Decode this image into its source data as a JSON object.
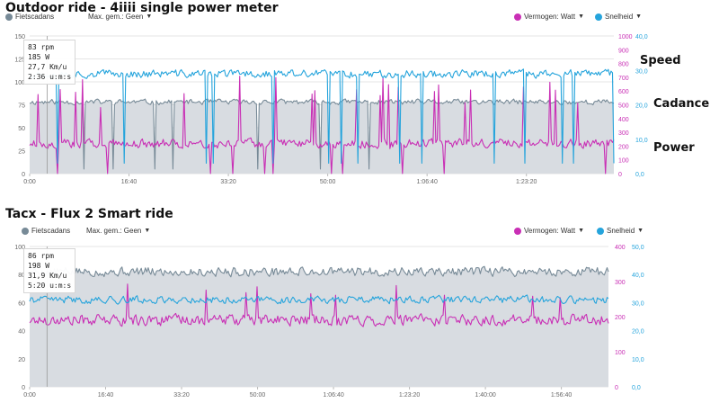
{
  "legend": {
    "cadence": "Fietscadans",
    "max_avg": "Max. gem.: Geen",
    "power": "Vermogen: Watt",
    "speed": "Snelheid"
  },
  "colors": {
    "cadence": "#778a97",
    "cadence_fill": "#d8dce1",
    "power": "#c92fb5",
    "speed": "#25a4dc",
    "grid": "#e5e5e5"
  },
  "icons": [
    "caret-down-icon"
  ],
  "chart_data": [
    {
      "type": "line",
      "title": "Outdoor ride - 4iiii single power meter",
      "annotations": [
        "Speed",
        "Cadance",
        "Power"
      ],
      "hover": [
        "83 rpm",
        "185 W",
        "27,7 Km/u",
        "2:36 u:m:s"
      ],
      "x_ticks": [
        "0:00",
        "16:40",
        "33:20",
        "50:00",
        "1:06:40",
        "1:23:20"
      ],
      "x_tick_seconds": [
        0,
        1000,
        2000,
        3000,
        4000,
        5000
      ],
      "x_end_seconds": 5880,
      "cadence_axis": {
        "ticks": [
          "0",
          "25",
          "50",
          "75",
          "100",
          "125",
          "150"
        ],
        "range": [
          0,
          150
        ]
      },
      "power_axis": {
        "ticks": [
          "0",
          "100",
          "200",
          "300",
          "400",
          "500",
          "600",
          "700",
          "800",
          "900",
          "1000"
        ],
        "range": [
          0,
          1000
        ]
      },
      "speed_axis": {
        "ticks": [
          "0,0",
          "10,0",
          "20,0",
          "30,0",
          "40,0"
        ],
        "range": [
          0,
          40
        ]
      },
      "series": [
        {
          "name": "Fietscadans",
          "axis": "cadence",
          "base": 78,
          "noise": 4,
          "dips": 0.03,
          "dip_value": 5,
          "seed": 11
        },
        {
          "name": "Vermogen: Watt",
          "axis": "power",
          "base": 220,
          "noise": 45,
          "spikes": 0.05,
          "spike_value": 720,
          "dips": 0.03,
          "dip_value": 0,
          "seed": 23
        },
        {
          "name": "Snelheid",
          "axis": "speed",
          "base": 29,
          "noise": 1.6,
          "dips": 0.03,
          "dip_value": 3,
          "seed": 37
        }
      ]
    },
    {
      "type": "line",
      "title": "Tacx - Flux 2 Smart ride",
      "annotations": [],
      "hover": [
        "86 rpm",
        "198 W",
        "31,9 Km/u",
        "5:20 u:m:s"
      ],
      "x_ticks": [
        "0:00",
        "16:40",
        "33:20",
        "50:00",
        "1:06:40",
        "1:23:20",
        "1:40:00",
        "1:56:40"
      ],
      "x_tick_seconds": [
        0,
        1000,
        2000,
        3000,
        4000,
        5000,
        6000,
        7000
      ],
      "x_end_seconds": 7620,
      "cadence_axis": {
        "ticks": [
          "0",
          "20",
          "40",
          "60",
          "80",
          "100"
        ],
        "range": [
          0,
          100
        ]
      },
      "power_axis": {
        "ticks": [
          "0",
          "100",
          "200",
          "300",
          "400"
        ],
        "range": [
          0,
          400
        ]
      },
      "speed_axis": {
        "ticks": [
          "0,0",
          "10,0",
          "20,0",
          "30,0",
          "40,0",
          "50,0"
        ],
        "range": [
          0,
          50
        ]
      },
      "series": [
        {
          "name": "Fietscadans",
          "axis": "cadence",
          "base": 82,
          "noise": 4.5,
          "dips": 0,
          "dip_value": 0,
          "seed": 5
        },
        {
          "name": "Vermogen: Watt",
          "axis": "power",
          "base": 190,
          "noise": 22,
          "spikes": 0.02,
          "spike_value": 300,
          "dips": 0,
          "dip_value": 0,
          "seed": 17
        },
        {
          "name": "Snelheid",
          "axis": "speed",
          "base": 31,
          "noise": 1.8,
          "dips": 0.002,
          "dip_value": 0,
          "seed": 41
        }
      ]
    }
  ]
}
